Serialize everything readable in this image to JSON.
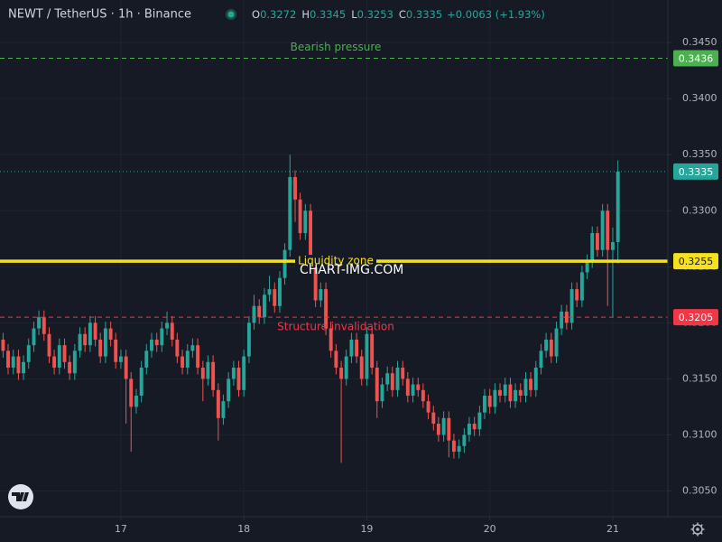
{
  "chart_data": {
    "type": "candlestick",
    "title": "NEWT / TetherUS · 1h · Binance",
    "ohlc": [
      {
        "label": "O",
        "value": "0.3272"
      },
      {
        "label": "H",
        "value": "0.3345"
      },
      {
        "label": "L",
        "value": "0.3253"
      },
      {
        "label": "C",
        "value": "0.3335"
      }
    ],
    "change": "+0.0063 (+1.93%)",
    "watermark": "CHART-IMG.COM",
    "up_color": "#26a69a",
    "down_color": "#ef5350",
    "grid": true,
    "xlim": [
      16.017,
      21.448
    ],
    "ylim": [
      0.3027,
      0.3488
    ],
    "xticks": [
      17,
      18,
      19,
      20,
      21
    ],
    "yticks": [
      {
        "value": 0.305,
        "label": "0.3050"
      },
      {
        "value": 0.31,
        "label": "0.3100"
      },
      {
        "value": 0.315,
        "label": "0.3150"
      },
      {
        "value": 0.32,
        "label": "0.3200"
      },
      {
        "value": 0.325,
        "label": "0.3250"
      },
      {
        "value": 0.33,
        "label": "0.3300"
      },
      {
        "value": 0.335,
        "label": "0.3350"
      },
      {
        "value": 0.34,
        "label": "0.3400"
      },
      {
        "value": 0.345,
        "label": "0.3450"
      }
    ],
    "x": [
      16.042,
      16.083,
      16.125,
      16.167,
      16.208,
      16.25,
      16.292,
      16.333,
      16.375,
      16.417,
      16.458,
      16.5,
      16.542,
      16.583,
      16.625,
      16.667,
      16.708,
      16.75,
      16.792,
      16.833,
      16.875,
      16.917,
      16.958,
      17,
      17.042,
      17.083,
      17.125,
      17.167,
      17.208,
      17.25,
      17.292,
      17.333,
      17.375,
      17.417,
      17.458,
      17.5,
      17.542,
      17.583,
      17.625,
      17.667,
      17.708,
      17.75,
      17.792,
      17.833,
      17.875,
      17.917,
      17.958,
      18,
      18.042,
      18.083,
      18.125,
      18.167,
      18.208,
      18.25,
      18.292,
      18.333,
      18.375,
      18.417,
      18.458,
      18.5,
      18.542,
      18.583,
      18.625,
      18.667,
      18.708,
      18.75,
      18.792,
      18.833,
      18.875,
      18.917,
      18.958,
      19,
      19.042,
      19.083,
      19.125,
      19.167,
      19.208,
      19.25,
      19.292,
      19.333,
      19.375,
      19.417,
      19.458,
      19.5,
      19.542,
      19.583,
      19.625,
      19.667,
      19.708,
      19.75,
      19.792,
      19.833,
      19.875,
      19.917,
      19.958,
      20,
      20.042,
      20.083,
      20.125,
      20.167,
      20.208,
      20.25,
      20.292,
      20.333,
      20.375,
      20.417,
      20.458,
      20.5,
      20.542,
      20.583,
      20.625,
      20.667,
      20.708,
      20.75,
      20.792,
      20.833,
      20.875,
      20.917,
      20.958,
      21,
      21.042
    ],
    "open": [
      0.3185,
      0.3175,
      0.316,
      0.317,
      0.3155,
      0.3165,
      0.318,
      0.3195,
      0.3205,
      0.319,
      0.317,
      0.316,
      0.318,
      0.3165,
      0.3155,
      0.3175,
      0.319,
      0.318,
      0.32,
      0.3185,
      0.317,
      0.3195,
      0.3185,
      0.3165,
      0.317,
      0.315,
      0.3125,
      0.3135,
      0.316,
      0.3175,
      0.3185,
      0.318,
      0.3195,
      0.32,
      0.3185,
      0.317,
      0.316,
      0.3175,
      0.318,
      0.316,
      0.315,
      0.3165,
      0.314,
      0.3115,
      0.313,
      0.315,
      0.316,
      0.314,
      0.317,
      0.32,
      0.3215,
      0.3205,
      0.3225,
      0.323,
      0.3215,
      0.324,
      0.3265,
      0.333,
      0.331,
      0.328,
      0.33,
      0.325,
      0.322,
      0.323,
      0.3195,
      0.3175,
      0.316,
      0.315,
      0.317,
      0.3185,
      0.317,
      0.315,
      0.319,
      0.316,
      0.313,
      0.3145,
      0.3155,
      0.314,
      0.316,
      0.315,
      0.3135,
      0.3145,
      0.314,
      0.313,
      0.312,
      0.311,
      0.31,
      0.3115,
      0.3095,
      0.3085,
      0.309,
      0.31,
      0.311,
      0.3105,
      0.312,
      0.3135,
      0.3125,
      0.314,
      0.3135,
      0.3145,
      0.313,
      0.314,
      0.3135,
      0.315,
      0.314,
      0.316,
      0.3175,
      0.3185,
      0.317,
      0.3195,
      0.321,
      0.32,
      0.323,
      0.322,
      0.3245,
      0.3255,
      0.328,
      0.3265,
      0.33,
      0.3265,
      0.3272
    ],
    "high": [
      0.3191,
      0.3181,
      0.3176,
      0.3176,
      0.3171,
      0.3186,
      0.3201,
      0.3211,
      0.3211,
      0.3196,
      0.3176,
      0.3186,
      0.3186,
      0.3171,
      0.3181,
      0.3196,
      0.3196,
      0.3206,
      0.3206,
      0.3191,
      0.3201,
      0.3201,
      0.3191,
      0.3176,
      0.3176,
      0.3156,
      0.3141,
      0.3166,
      0.3181,
      0.3191,
      0.3191,
      0.3201,
      0.321,
      0.3206,
      0.3191,
      0.3176,
      0.3181,
      0.3186,
      0.3186,
      0.3166,
      0.3171,
      0.3171,
      0.3146,
      0.3136,
      0.3156,
      0.3166,
      0.3166,
      0.3176,
      0.3206,
      0.3225,
      0.3221,
      0.3231,
      0.3242,
      0.3236,
      0.3246,
      0.3271,
      0.335,
      0.3336,
      0.3316,
      0.3306,
      0.3306,
      0.3256,
      0.3236,
      0.3236,
      0.3201,
      0.3181,
      0.3166,
      0.3176,
      0.3191,
      0.3191,
      0.3176,
      0.3196,
      0.3196,
      0.3166,
      0.3151,
      0.3161,
      0.3161,
      0.3166,
      0.3166,
      0.3156,
      0.3151,
      0.3151,
      0.3146,
      0.3136,
      0.3126,
      0.3116,
      0.3121,
      0.3121,
      0.3101,
      0.3096,
      0.3106,
      0.3116,
      0.3116,
      0.3126,
      0.3141,
      0.3141,
      0.3146,
      0.3146,
      0.3151,
      0.3151,
      0.3146,
      0.3146,
      0.3156,
      0.3156,
      0.3166,
      0.3181,
      0.3191,
      0.3191,
      0.3201,
      0.3216,
      0.3216,
      0.3236,
      0.3236,
      0.3251,
      0.3261,
      0.3286,
      0.3286,
      0.3306,
      0.3306,
      0.3285,
      0.3345
    ],
    "low": [
      0.3169,
      0.3154,
      0.3154,
      0.3149,
      0.3149,
      0.3159,
      0.3174,
      0.3189,
      0.3184,
      0.3164,
      0.3154,
      0.3154,
      0.3159,
      0.3149,
      0.3149,
      0.3169,
      0.3174,
      0.3174,
      0.3179,
      0.3164,
      0.3164,
      0.3179,
      0.3159,
      0.3159,
      0.311,
      0.3085,
      0.3119,
      0.3129,
      0.3154,
      0.3169,
      0.3174,
      0.3174,
      0.3189,
      0.3179,
      0.3164,
      0.3154,
      0.3154,
      0.3169,
      0.3154,
      0.313,
      0.3144,
      0.3134,
      0.3095,
      0.3109,
      0.3124,
      0.3144,
      0.3134,
      0.3134,
      0.3164,
      0.3194,
      0.3199,
      0.3199,
      0.3219,
      0.3209,
      0.3209,
      0.3234,
      0.3259,
      0.329,
      0.3274,
      0.3274,
      0.3244,
      0.3214,
      0.3214,
      0.3189,
      0.3169,
      0.3154,
      0.3075,
      0.3144,
      0.3164,
      0.3164,
      0.3144,
      0.3144,
      0.3154,
      0.3115,
      0.3124,
      0.3139,
      0.3134,
      0.3134,
      0.3144,
      0.3129,
      0.3129,
      0.3134,
      0.3124,
      0.3114,
      0.3104,
      0.3094,
      0.3094,
      0.308,
      0.3079,
      0.3079,
      0.3084,
      0.3094,
      0.3099,
      0.3099,
      0.3114,
      0.3119,
      0.3119,
      0.3129,
      0.3129,
      0.3124,
      0.3124,
      0.3129,
      0.3129,
      0.3134,
      0.3134,
      0.3154,
      0.3169,
      0.3164,
      0.3164,
      0.3189,
      0.3194,
      0.3194,
      0.3214,
      0.3214,
      0.3239,
      0.3249,
      0.3259,
      0.3259,
      0.3215,
      0.3205,
      0.3253
    ],
    "close": [
      0.3175,
      0.316,
      0.317,
      0.3155,
      0.3165,
      0.318,
      0.3195,
      0.3205,
      0.319,
      0.317,
      0.316,
      0.318,
      0.3165,
      0.3155,
      0.3175,
      0.319,
      0.318,
      0.32,
      0.3185,
      0.317,
      0.3195,
      0.3185,
      0.3165,
      0.317,
      0.315,
      0.3125,
      0.3135,
      0.316,
      0.3175,
      0.3185,
      0.318,
      0.3195,
      0.32,
      0.3185,
      0.317,
      0.316,
      0.3175,
      0.318,
      0.316,
      0.315,
      0.3165,
      0.314,
      0.3115,
      0.313,
      0.315,
      0.316,
      0.314,
      0.317,
      0.32,
      0.3215,
      0.3205,
      0.3225,
      0.323,
      0.3215,
      0.324,
      0.3265,
      0.333,
      0.331,
      0.328,
      0.33,
      0.325,
      0.322,
      0.323,
      0.3195,
      0.3175,
      0.316,
      0.315,
      0.317,
      0.3185,
      0.317,
      0.315,
      0.319,
      0.316,
      0.313,
      0.3145,
      0.3155,
      0.314,
      0.316,
      0.315,
      0.3135,
      0.3145,
      0.314,
      0.313,
      0.312,
      0.311,
      0.31,
      0.3115,
      0.3095,
      0.3085,
      0.309,
      0.31,
      0.311,
      0.3105,
      0.312,
      0.3135,
      0.3125,
      0.314,
      0.3135,
      0.3145,
      0.313,
      0.314,
      0.3135,
      0.315,
      0.314,
      0.316,
      0.3175,
      0.3185,
      0.317,
      0.3195,
      0.321,
      0.32,
      0.323,
      0.322,
      0.3245,
      0.3255,
      0.328,
      0.3265,
      0.33,
      0.3265,
      0.3272,
      0.3335
    ],
    "hlines": [
      {
        "name": "Bearish pressure",
        "value": 0.3436,
        "color": "#4caf50",
        "style": "dashed",
        "label_position": "above"
      },
      {
        "value": 0.3335,
        "color": "#26a69a",
        "style": "dotted"
      },
      {
        "name": "Liquidity zone",
        "value": 0.3255,
        "color": "#f5e11e",
        "style": "solid",
        "label_position": "middle"
      },
      {
        "name": "Structure invalidation",
        "value": 0.3205,
        "color": "#f23645",
        "style": "dashed",
        "label_position": "below"
      }
    ]
  }
}
